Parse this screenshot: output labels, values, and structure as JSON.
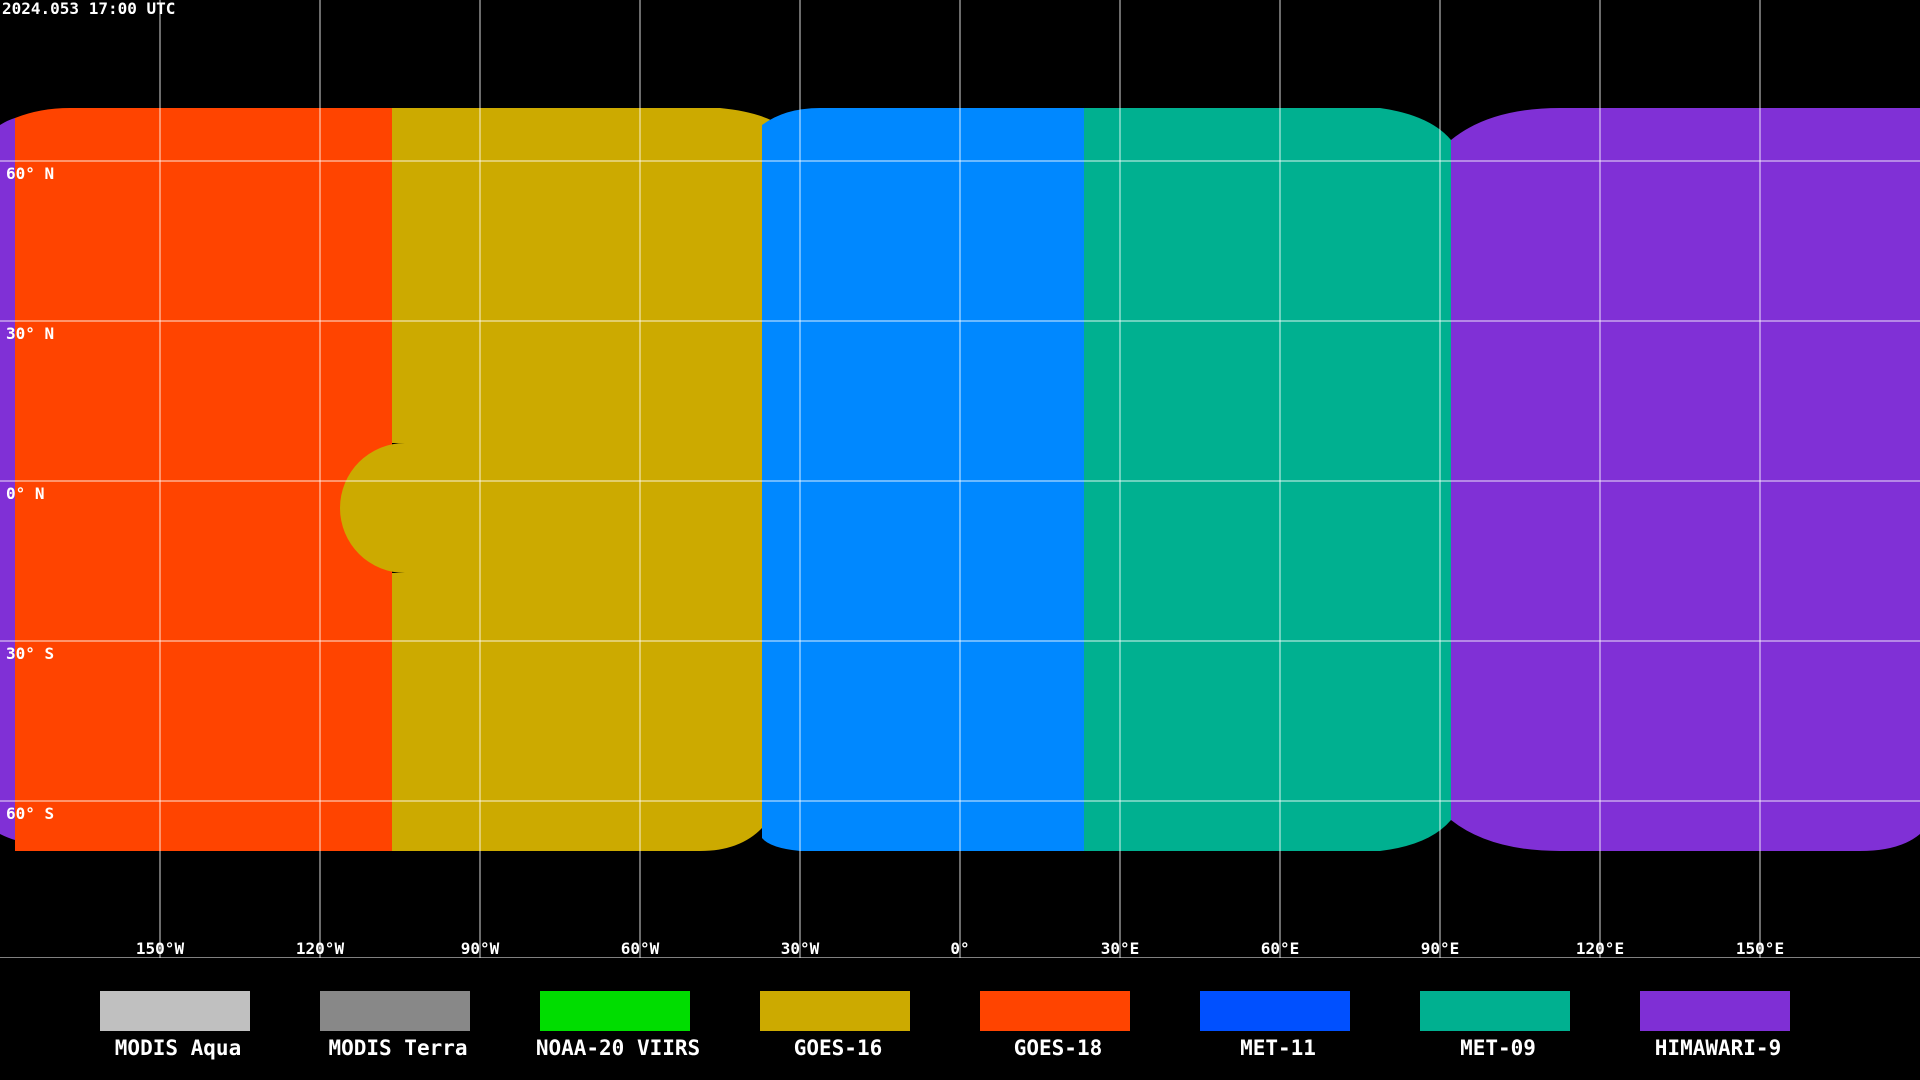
{
  "timestamp": "2024.053 17:00 UTC",
  "lat_labels": [
    "60° N",
    "30° N",
    "0° N",
    "30° S",
    "60° S"
  ],
  "lon_labels": [
    "150°W",
    "120°W",
    "90°W",
    "60°W",
    "30°W",
    "0°",
    "30°E",
    "60°E",
    "90°E",
    "120°E",
    "150°E"
  ],
  "legend": [
    {
      "name": "MODIS Aqua",
      "color": "#c0c0c0"
    },
    {
      "name": "MODIS Terra",
      "color": "#888888"
    },
    {
      "name": "NOAA-20 VIIRS",
      "color": "#00dd00"
    },
    {
      "name": "GOES-16",
      "color": "#ccaa00"
    },
    {
      "name": "GOES-18",
      "color": "#ff4400"
    },
    {
      "name": "MET-11",
      "color": "#0050ff"
    },
    {
      "name": "MET-09",
      "color": "#00b090"
    },
    {
      "name": "HIMAWARI-9",
      "color": "#7f2fd5"
    }
  ]
}
